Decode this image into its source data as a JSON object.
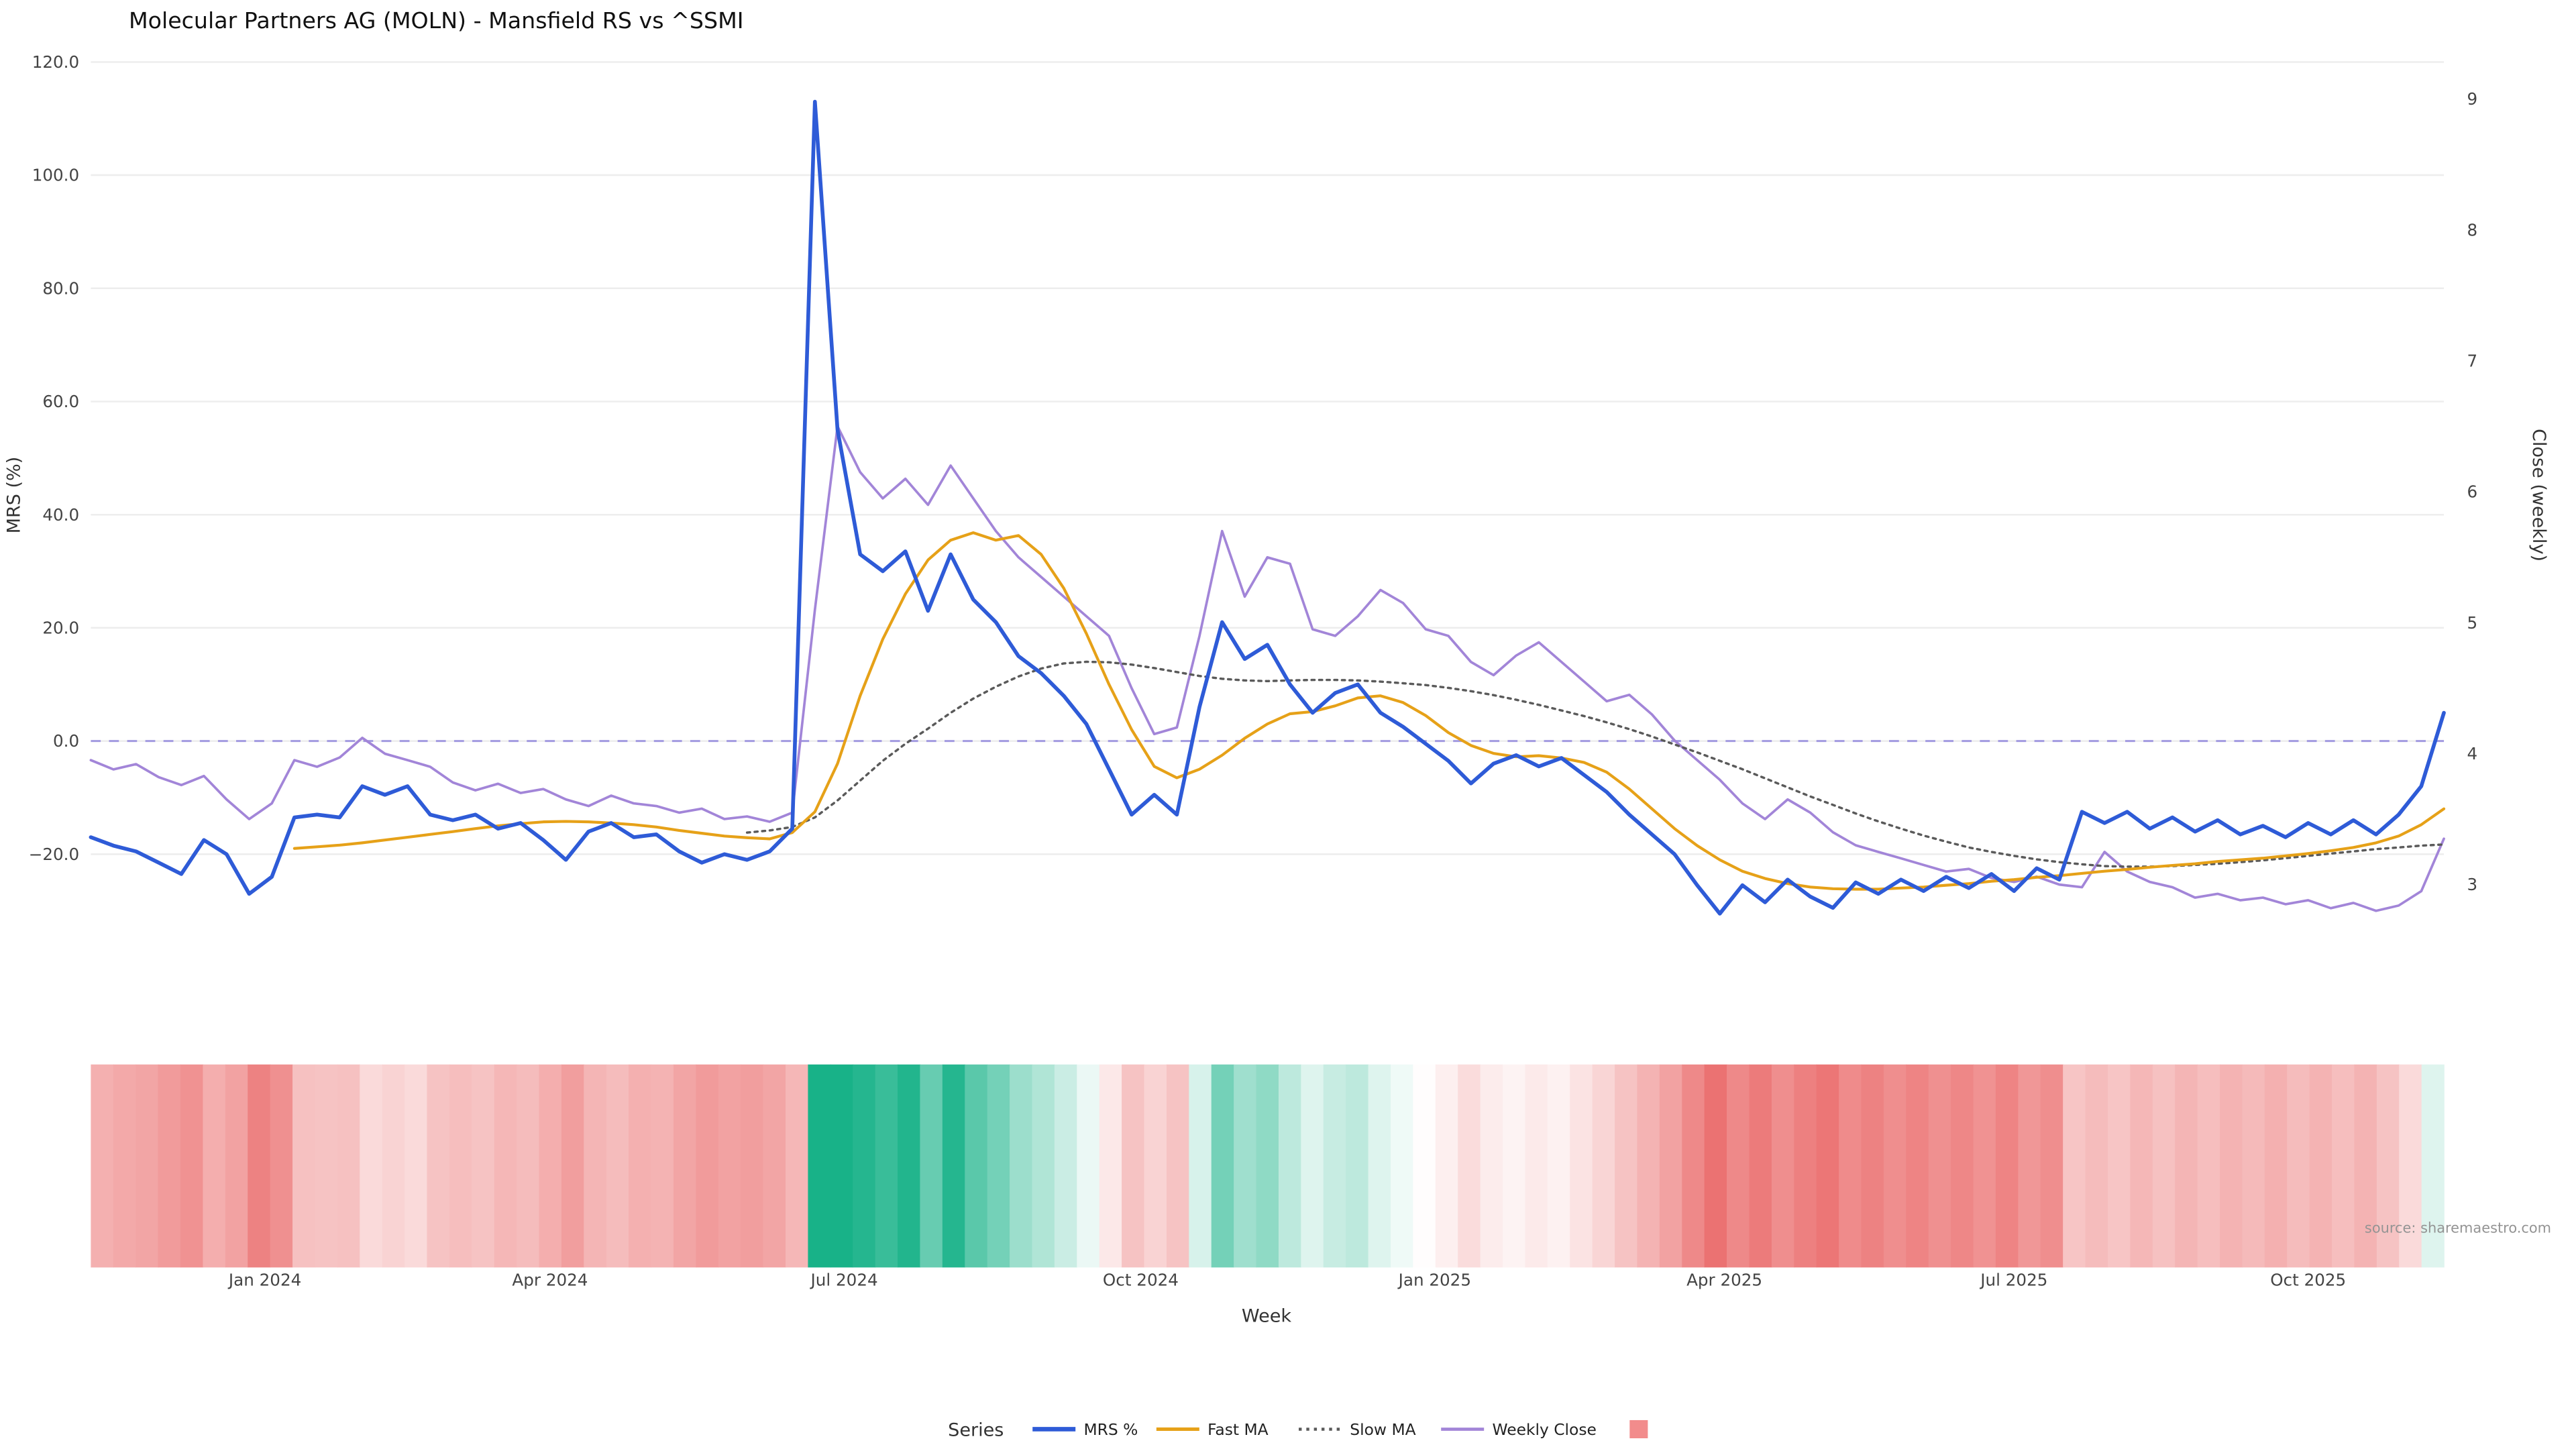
{
  "chart_data": {
    "type": "line",
    "title": "Molecular Partners AG (MOLN) - Mansfield RS vs ^SSMI",
    "xlabel": "Week",
    "ylabel_left": "MRS (%)",
    "ylabel_right": "Close (weekly)",
    "watermark": "source: sharemaestro.com",
    "grid_color": "#ededed",
    "background": "#ffffff",
    "left_axis_range": [
      -36,
      124
    ],
    "right_axis_range": [
      2.6,
      9.3
    ],
    "left_ticks": [
      {
        "v": 120,
        "label": "120.0"
      },
      {
        "v": 100,
        "label": "100.0"
      },
      {
        "v": 80,
        "label": "80.0"
      },
      {
        "v": 60,
        "label": "60.0"
      },
      {
        "v": 40,
        "label": "40.0"
      },
      {
        "v": 20,
        "label": "20.0"
      },
      {
        "v": 0,
        "label": "0.0"
      },
      {
        "v": -20,
        "label": "−20.0"
      }
    ],
    "right_ticks": [
      {
        "v": 9,
        "label": "9"
      },
      {
        "v": 8,
        "label": "8"
      },
      {
        "v": 7,
        "label": "7"
      },
      {
        "v": 6,
        "label": "6"
      },
      {
        "v": 5,
        "label": "5"
      },
      {
        "v": 4,
        "label": "4"
      },
      {
        "v": 3,
        "label": "3"
      }
    ],
    "x_ticks": [
      {
        "pos": 7.7,
        "label": "Jan 2024"
      },
      {
        "pos": 20.3,
        "label": "Apr 2024"
      },
      {
        "pos": 33.3,
        "label": "Jul 2024"
      },
      {
        "pos": 46.4,
        "label": "Oct 2024"
      },
      {
        "pos": 59.4,
        "label": "Jan 2025"
      },
      {
        "pos": 72.2,
        "label": "Apr 2025"
      },
      {
        "pos": 85.0,
        "label": "Jul 2025"
      },
      {
        "pos": 98.0,
        "label": "Oct 2025"
      }
    ],
    "zero_line": {
      "value": 0,
      "color": "#a29ae0",
      "dash": "6,5",
      "width": 1.2
    },
    "series": [
      {
        "name": "MRS %",
        "axis": "left",
        "color": "#2e5bd7",
        "width": 2.3,
        "values": [
          -17,
          -18.5,
          -19.5,
          -21.5,
          -23.5,
          -17.5,
          -20,
          -27,
          -24,
          -13.5,
          -13,
          -13.5,
          -8,
          -9.5,
          -8,
          -13,
          -14,
          -13,
          -15.5,
          -14.5,
          -17.5,
          -21,
          -16,
          -14.5,
          -17,
          -16.5,
          -19.5,
          -21.5,
          -20,
          -21,
          -19.5,
          -15.5,
          113,
          55,
          33,
          30,
          33.5,
          23,
          33,
          25,
          21,
          15,
          12,
          8,
          3,
          -5,
          -13,
          -9.5,
          -13,
          6,
          21,
          14.5,
          17,
          10,
          5,
          8.5,
          10,
          5,
          2.5,
          -0.5,
          -3.5,
          -7.5,
          -4,
          -2.5,
          -4.5,
          -3,
          -6,
          -9,
          -13,
          -16.5,
          -20,
          -25.5,
          -30.5,
          -25.5,
          -28.5,
          -24.5,
          -27.5,
          -29.5,
          -25,
          -27,
          -24.5,
          -26.5,
          -24,
          -26,
          -23.5,
          -26.5,
          -22.5,
          -24.5,
          -12.5,
          -14.5,
          -12.5,
          -15.5,
          -13.5,
          -16,
          -14,
          -16.5,
          -15,
          -17,
          -14.5,
          -16.5,
          -14,
          -16.5,
          -13,
          -8,
          5
        ]
      },
      {
        "name": "Fast MA",
        "axis": "left",
        "color": "#e6a118",
        "width": 1.7,
        "values": [
          null,
          null,
          null,
          null,
          null,
          null,
          null,
          null,
          null,
          -19,
          -18.7,
          -18.4,
          -18,
          -17.5,
          -17,
          -16.5,
          -16,
          -15.5,
          -15,
          -14.6,
          -14.3,
          -14.2,
          -14.3,
          -14.5,
          -14.8,
          -15.2,
          -15.8,
          -16.3,
          -16.8,
          -17.1,
          -17.3,
          -16.2,
          -12.5,
          -4,
          8,
          18,
          26,
          32,
          35.5,
          36.8,
          35.5,
          36.3,
          33,
          27,
          19,
          10,
          2,
          -4.5,
          -6.5,
          -5,
          -2.5,
          0.5,
          3,
          4.8,
          5.2,
          6.2,
          7.6,
          8,
          6.8,
          4.5,
          1.5,
          -0.8,
          -2.2,
          -2.8,
          -2.6,
          -3,
          -3.8,
          -5.5,
          -8.5,
          -12,
          -15.5,
          -18.5,
          -21,
          -23,
          -24.3,
          -25.2,
          -25.8,
          -26.1,
          -26.2,
          -26.2,
          -26,
          -25.8,
          -25.5,
          -25.2,
          -24.8,
          -24.5,
          -24.1,
          -23.8,
          -23.4,
          -23,
          -22.7,
          -22.3,
          -22,
          -21.7,
          -21.3,
          -21,
          -20.7,
          -20.3,
          -19.9,
          -19.4,
          -18.8,
          -18,
          -16.8,
          -14.8,
          -12
        ]
      },
      {
        "name": "Slow MA",
        "axis": "left",
        "color": "#5a5a5a",
        "width": 1.4,
        "dash": "1.8,2.8",
        "values": [
          null,
          null,
          null,
          null,
          null,
          null,
          null,
          null,
          null,
          null,
          null,
          null,
          null,
          null,
          null,
          null,
          null,
          null,
          null,
          null,
          null,
          null,
          null,
          null,
          null,
          null,
          null,
          null,
          null,
          -16.2,
          -15.8,
          -15.2,
          -13.5,
          -10.5,
          -7,
          -3.5,
          -0.5,
          2.2,
          5,
          7.5,
          9.6,
          11.4,
          12.8,
          13.7,
          14,
          13.9,
          13.5,
          12.9,
          12.2,
          11.5,
          11,
          10.7,
          10.6,
          10.7,
          10.8,
          10.8,
          10.7,
          10.5,
          10.2,
          9.9,
          9.4,
          8.8,
          8.1,
          7.3,
          6.4,
          5.4,
          4.4,
          3.3,
          2.1,
          0.8,
          -0.6,
          -2,
          -3.5,
          -5,
          -6.6,
          -8.2,
          -9.8,
          -11.3,
          -12.8,
          -14.2,
          -15.5,
          -16.7,
          -17.8,
          -18.8,
          -19.6,
          -20.3,
          -20.9,
          -21.4,
          -21.8,
          -22.1,
          -22.2,
          -22.2,
          -22.1,
          -21.9,
          -21.7,
          -21.4,
          -21.1,
          -20.7,
          -20.3,
          -19.9,
          -19.5,
          -19.1,
          -18.8,
          -18.5,
          -18.3
        ]
      },
      {
        "name": "Weekly Close",
        "axis": "right",
        "color": "#a285d8",
        "width": 1.5,
        "values": [
          3.95,
          3.88,
          3.92,
          3.82,
          3.76,
          3.83,
          3.65,
          3.5,
          3.62,
          3.95,
          3.9,
          3.97,
          4.12,
          4.0,
          3.95,
          3.9,
          3.78,
          3.72,
          3.77,
          3.7,
          3.73,
          3.65,
          3.6,
          3.68,
          3.62,
          3.6,
          3.55,
          3.58,
          3.5,
          3.52,
          3.48,
          3.55,
          5.1,
          6.5,
          6.15,
          5.95,
          6.1,
          5.9,
          6.2,
          5.95,
          5.7,
          5.5,
          5.35,
          5.2,
          5.05,
          4.9,
          4.5,
          4.15,
          4.2,
          4.9,
          5.7,
          5.2,
          5.5,
          5.45,
          4.95,
          4.9,
          5.05,
          5.25,
          5.15,
          4.95,
          4.9,
          4.7,
          4.6,
          4.75,
          4.85,
          4.7,
          4.55,
          4.4,
          4.45,
          4.3,
          4.1,
          3.95,
          3.8,
          3.62,
          3.5,
          3.65,
          3.55,
          3.4,
          3.3,
          3.25,
          3.2,
          3.15,
          3.1,
          3.12,
          3.05,
          3.02,
          3.06,
          3.0,
          2.98,
          3.25,
          3.1,
          3.02,
          2.98,
          2.9,
          2.93,
          2.88,
          2.9,
          2.85,
          2.88,
          2.82,
          2.86,
          2.8,
          2.84,
          2.95,
          3.35
        ]
      }
    ],
    "heatmap": {
      "derived_from": "MRS %",
      "positive_color": "#18b288",
      "negative_color": "#e85d5d",
      "saturation_abs": 35
    },
    "legend": {
      "title": "Series",
      "extra_swatch_color": "#f28c8c"
    }
  }
}
